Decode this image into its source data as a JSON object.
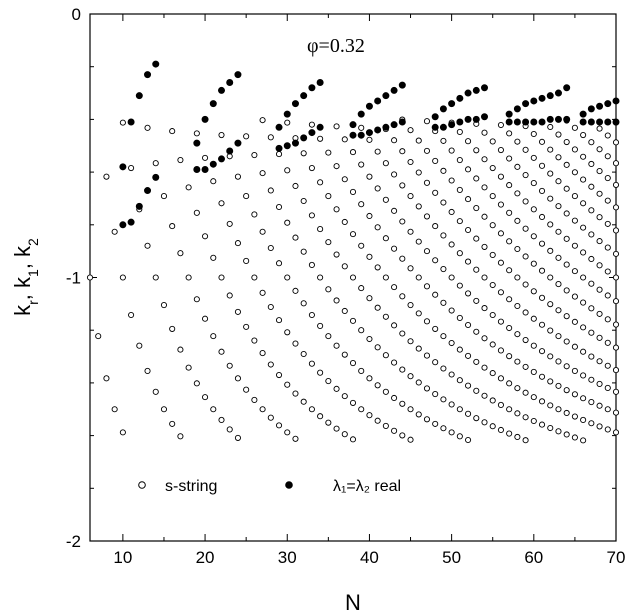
{
  "chart_data": {
    "type": "scatter",
    "xlabel_text": "N",
    "ylabel_base": "k",
    "ylabel_subscripts": [
      "r",
      "1",
      "2"
    ],
    "xlim": [
      6,
      70
    ],
    "ylim": [
      -2,
      0
    ],
    "xticks": [
      10,
      20,
      30,
      40,
      50,
      60,
      70
    ],
    "yticks": [
      0,
      -1,
      -2
    ],
    "xtick_labels": [
      "10",
      "20",
      "30",
      "40",
      "50",
      "60",
      "70"
    ],
    "ytick_labels": [
      "0",
      "-1",
      "-2"
    ],
    "grid": false,
    "annotation": {
      "text": "φ=0.32"
    },
    "legend": {
      "placement": "bottom-center",
      "open_label": "s-string",
      "filled_label": "λ₁=λ₂ real"
    },
    "series": [
      {
        "name": "s-string",
        "marker": "open-circle",
        "model": "k_m(N) = -1 - cos(pi*(2m-1)/N), m = 1..floor(N/2), shown where k <= -0.4",
        "x_range": [
          6,
          70
        ]
      },
      {
        "name": "λ₁=λ₂ real",
        "marker": "filled-circle",
        "groups": [
          {
            "upper": [
              [
                10,
                -0.58
              ],
              [
                11,
                -0.41
              ],
              [
                12,
                -0.31
              ],
              [
                13,
                -0.23
              ],
              [
                14,
                -0.19
              ]
            ],
            "lower": [
              [
                10,
                -0.8
              ],
              [
                11,
                -0.79
              ],
              [
                12,
                -0.73
              ],
              [
                13,
                -0.67
              ],
              [
                14,
                -0.62
              ]
            ]
          },
          {
            "upper": [
              [
                19,
                -0.49
              ],
              [
                20,
                -0.4
              ],
              [
                21,
                -0.34
              ],
              [
                22,
                -0.29
              ],
              [
                23,
                -0.26
              ],
              [
                24,
                -0.23
              ]
            ],
            "lower": [
              [
                19,
                -0.59
              ],
              [
                20,
                -0.59
              ],
              [
                21,
                -0.57
              ],
              [
                22,
                -0.55
              ],
              [
                23,
                -0.52
              ],
              [
                24,
                -0.49
              ]
            ]
          },
          {
            "upper": [
              [
                29,
                -0.43
              ],
              [
                30,
                -0.38
              ],
              [
                31,
                -0.34
              ],
              [
                32,
                -0.31
              ],
              [
                33,
                -0.28
              ],
              [
                34,
                -0.26
              ]
            ],
            "lower": [
              [
                29,
                -0.51
              ],
              [
                30,
                -0.5
              ],
              [
                31,
                -0.49
              ],
              [
                32,
                -0.47
              ],
              [
                33,
                -0.45
              ],
              [
                34,
                -0.43
              ]
            ]
          },
          {
            "upper": [
              [
                38,
                -0.42
              ],
              [
                39,
                -0.38
              ],
              [
                40,
                -0.35
              ],
              [
                41,
                -0.33
              ],
              [
                42,
                -0.31
              ],
              [
                43,
                -0.29
              ],
              [
                44,
                -0.27
              ]
            ],
            "lower": [
              [
                38,
                -0.46
              ],
              [
                39,
                -0.46
              ],
              [
                40,
                -0.45
              ],
              [
                41,
                -0.44
              ],
              [
                42,
                -0.43
              ],
              [
                43,
                -0.42
              ],
              [
                44,
                -0.41
              ]
            ]
          },
          {
            "upper": [
              [
                48,
                -0.39
              ],
              [
                49,
                -0.36
              ],
              [
                50,
                -0.34
              ],
              [
                51,
                -0.32
              ],
              [
                52,
                -0.3
              ],
              [
                53,
                -0.29
              ],
              [
                54,
                -0.28
              ]
            ],
            "lower": [
              [
                48,
                -0.43
              ],
              [
                49,
                -0.43
              ],
              [
                50,
                -0.42
              ],
              [
                51,
                -0.41
              ],
              [
                52,
                -0.4
              ],
              [
                53,
                -0.4
              ],
              [
                54,
                -0.39
              ]
            ]
          },
          {
            "upper": [
              [
                57,
                -0.38
              ],
              [
                58,
                -0.36
              ],
              [
                59,
                -0.34
              ],
              [
                60,
                -0.33
              ],
              [
                61,
                -0.32
              ],
              [
                62,
                -0.31
              ],
              [
                63,
                -0.3
              ],
              [
                64,
                -0.28
              ]
            ],
            "lower": [
              [
                57,
                -0.41
              ],
              [
                58,
                -0.41
              ],
              [
                59,
                -0.41
              ],
              [
                60,
                -0.41
              ],
              [
                61,
                -0.41
              ],
              [
                62,
                -0.4
              ],
              [
                63,
                -0.4
              ],
              [
                64,
                -0.4
              ]
            ]
          },
          {
            "upper": [
              [
                66,
                -0.38
              ],
              [
                67,
                -0.36
              ],
              [
                68,
                -0.35
              ],
              [
                69,
                -0.34
              ],
              [
                70,
                -0.33
              ]
            ],
            "lower": [
              [
                66,
                -0.41
              ],
              [
                67,
                -0.41
              ],
              [
                68,
                -0.41
              ],
              [
                69,
                -0.41
              ],
              [
                70,
                -0.41
              ]
            ]
          }
        ]
      }
    ]
  }
}
